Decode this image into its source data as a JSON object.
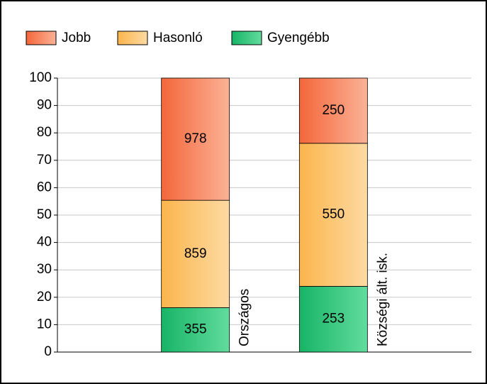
{
  "chart_data": {
    "type": "stacked-bar-100",
    "categories": [
      "Országos",
      "Községi ált. isk."
    ],
    "series": [
      {
        "name": "Jobb",
        "color": [
          "#f4663a",
          "#fbb296"
        ],
        "values": [
          44.6,
          23.8
        ],
        "count_labels": [
          "978",
          "250"
        ]
      },
      {
        "name": "Hasonló",
        "color": [
          "#fbb54c",
          "#fddaa3"
        ],
        "values": [
          39.2,
          52.2
        ],
        "count_labels": [
          "859",
          "550"
        ]
      },
      {
        "name": "Gyengébb",
        "color": [
          "#17b466",
          "#62dc9d"
        ],
        "values": [
          16.2,
          24.0
        ],
        "count_labels": [
          "355",
          "253"
        ]
      }
    ],
    "ylim": [
      0,
      100
    ],
    "yticks": [
      0,
      10,
      20,
      30,
      40,
      50,
      60,
      70,
      80,
      90,
      100
    ],
    "grid": true
  }
}
